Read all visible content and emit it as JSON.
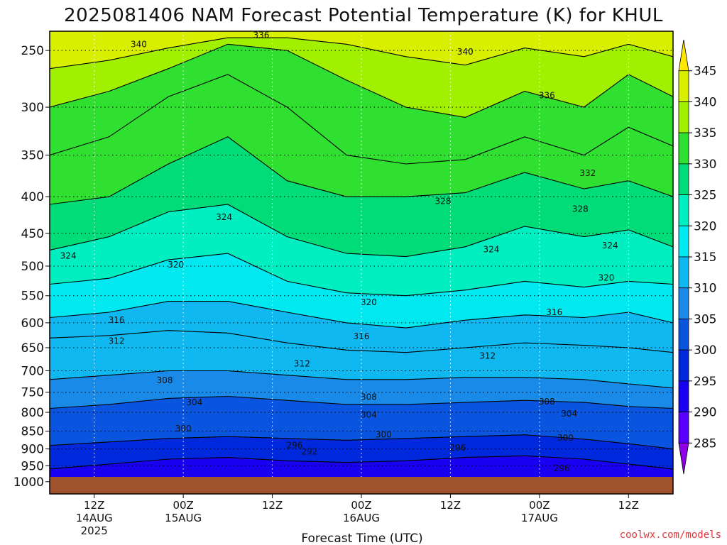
{
  "chart_data": {
    "type": "heatmap",
    "title": "2025081406 NAM Forecast Potential Temperature (K) for KHUL",
    "xlabel": "Forecast Time (UTC)",
    "ylabel": "",
    "y_scale": "log",
    "y_reversed": true,
    "ylim": [
      235,
      1040
    ],
    "y_ticks": [
      250,
      300,
      350,
      400,
      450,
      500,
      550,
      600,
      650,
      700,
      750,
      800,
      850,
      900,
      950,
      1000
    ],
    "x_range_hours": [
      6,
      90
    ],
    "x_ticks": [
      {
        "hour": 12,
        "label": "12Z",
        "sub1": "14AUG",
        "sub2": "2025"
      },
      {
        "hour": 24,
        "label": "00Z",
        "sub1": "15AUG",
        "sub2": ""
      },
      {
        "hour": 36,
        "label": "12Z",
        "sub1": "",
        "sub2": ""
      },
      {
        "hour": 48,
        "label": "00Z",
        "sub1": "16AUG",
        "sub2": ""
      },
      {
        "hour": 60,
        "label": "12Z",
        "sub1": "",
        "sub2": ""
      },
      {
        "hour": 72,
        "label": "00Z",
        "sub1": "17AUG",
        "sub2": ""
      },
      {
        "hour": 84,
        "label": "12Z",
        "sub1": "",
        "sub2": ""
      }
    ],
    "grid": true,
    "colorbar": {
      "levels": [
        285,
        290,
        295,
        300,
        305,
        310,
        315,
        320,
        325,
        330,
        335,
        340,
        345
      ],
      "colors": [
        "#8f00e6",
        "#5a00ff",
        "#1a00f0",
        "#0028dc",
        "#0a55e0",
        "#1a8ae8",
        "#10b8f2",
        "#00e8f0",
        "#00efc0",
        "#00dc78",
        "#30e030",
        "#a0f000",
        "#d8f000",
        "#ffe800"
      ]
    },
    "contour_levels": [
      288,
      292,
      296,
      300,
      304,
      308,
      312,
      316,
      320,
      324,
      328,
      332,
      336,
      340
    ],
    "contours": [
      {
        "theta": 296,
        "pressure_hpa": [
          960,
          945,
          930,
          925,
          935,
          940,
          935,
          925,
          920,
          930,
          945,
          960
        ]
      },
      {
        "theta": 300,
        "pressure_hpa": [
          890,
          880,
          870,
          865,
          870,
          875,
          870,
          865,
          860,
          872,
          885,
          900
        ]
      },
      {
        "theta": 304,
        "pressure_hpa": [
          790,
          780,
          765,
          760,
          770,
          780,
          780,
          775,
          770,
          775,
          785,
          790
        ]
      },
      {
        "theta": 308,
        "pressure_hpa": [
          720,
          710,
          700,
          700,
          710,
          720,
          720,
          715,
          715,
          720,
          730,
          740
        ]
      },
      {
        "theta": 312,
        "pressure_hpa": [
          630,
          625,
          615,
          620,
          640,
          655,
          660,
          650,
          640,
          645,
          650,
          660
        ]
      },
      {
        "theta": 316,
        "pressure_hpa": [
          590,
          580,
          560,
          560,
          580,
          600,
          610,
          595,
          585,
          590,
          580,
          600
        ]
      },
      {
        "theta": 320,
        "pressure_hpa": [
          530,
          520,
          490,
          480,
          525,
          545,
          550,
          540,
          525,
          535,
          525,
          530
        ]
      },
      {
        "theta": 324,
        "pressure_hpa": [
          475,
          455,
          420,
          410,
          455,
          480,
          485,
          470,
          440,
          455,
          445,
          470
        ]
      },
      {
        "theta": 328,
        "pressure_hpa": [
          410,
          400,
          360,
          330,
          380,
          400,
          400,
          395,
          370,
          390,
          380,
          400
        ]
      },
      {
        "theta": 332,
        "pressure_hpa": [
          350,
          330,
          290,
          270,
          300,
          350,
          360,
          355,
          330,
          350,
          320,
          340
        ]
      },
      {
        "theta": 336,
        "pressure_hpa": [
          300,
          285,
          265,
          245,
          250,
          275,
          300,
          310,
          285,
          300,
          270,
          290
        ]
      },
      {
        "theta": 340,
        "pressure_hpa": [
          265,
          258,
          248,
          240,
          240,
          245,
          255,
          262,
          248,
          255,
          245,
          255
        ]
      }
    ],
    "contour_hours": [
      6,
      14,
      22,
      30,
      38,
      46,
      54,
      62,
      70,
      78,
      84,
      90
    ],
    "labels": [
      {
        "text": "336",
        "hour": 34.5,
        "p": 238
      },
      {
        "text": "340",
        "hour": 18,
        "p": 245
      },
      {
        "text": "340",
        "hour": 62,
        "p": 251
      },
      {
        "text": "336",
        "hour": 73,
        "p": 289
      },
      {
        "text": "332",
        "hour": 78.5,
        "p": 371
      },
      {
        "text": "328",
        "hour": 59,
        "p": 406
      },
      {
        "text": "328",
        "hour": 77.5,
        "p": 416
      },
      {
        "text": "324",
        "hour": 29.5,
        "p": 427
      },
      {
        "text": "324",
        "hour": 65.5,
        "p": 474
      },
      {
        "text": "324",
        "hour": 81.5,
        "p": 468
      },
      {
        "text": "324",
        "hour": 8.5,
        "p": 484
      },
      {
        "text": "320",
        "hour": 23,
        "p": 498
      },
      {
        "text": "320",
        "hour": 81,
        "p": 519
      },
      {
        "text": "320",
        "hour": 49,
        "p": 562
      },
      {
        "text": "316",
        "hour": 15,
        "p": 595
      },
      {
        "text": "316",
        "hour": 74,
        "p": 580
      },
      {
        "text": "316",
        "hour": 48,
        "p": 627
      },
      {
        "text": "312",
        "hour": 15,
        "p": 636
      },
      {
        "text": "312",
        "hour": 65,
        "p": 667
      },
      {
        "text": "312",
        "hour": 40,
        "p": 684
      },
      {
        "text": "308",
        "hour": 21.5,
        "p": 722
      },
      {
        "text": "308",
        "hour": 49,
        "p": 762
      },
      {
        "text": "308",
        "hour": 73,
        "p": 773
      },
      {
        "text": "304",
        "hour": 25.5,
        "p": 775
      },
      {
        "text": "304",
        "hour": 49,
        "p": 806
      },
      {
        "text": "304",
        "hour": 76,
        "p": 804
      },
      {
        "text": "300",
        "hour": 24,
        "p": 843
      },
      {
        "text": "300",
        "hour": 51,
        "p": 860
      },
      {
        "text": "300",
        "hour": 75.5,
        "p": 868
      },
      {
        "text": "296",
        "hour": 39,
        "p": 890
      },
      {
        "text": "292",
        "hour": 41,
        "p": 908
      },
      {
        "text": "296",
        "hour": 61,
        "p": 897
      },
      {
        "text": "296",
        "hour": 75,
        "p": 958
      }
    ],
    "ground_color": "#a0522d"
  },
  "credit": "coolwx.com/models"
}
